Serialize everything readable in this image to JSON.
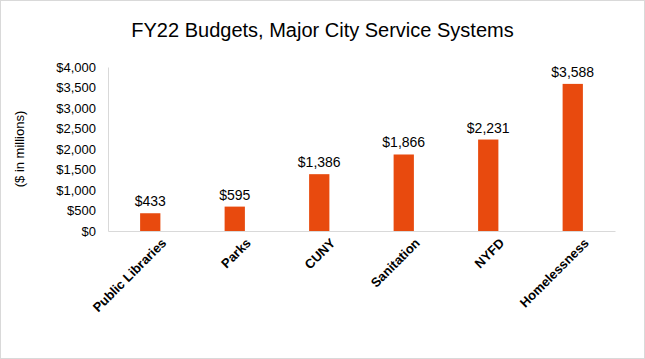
{
  "chart_data": {
    "type": "bar",
    "title": "FY22 Budgets, Major City Service Systems",
    "ylabel": "($ in millions)",
    "categories": [
      "Public Libraries",
      "Parks",
      "CUNY",
      "Sanitation",
      "NYFD",
      "Homelessness"
    ],
    "values": [
      433,
      595,
      1386,
      1866,
      2231,
      3588
    ],
    "value_labels": [
      "$433",
      "$595",
      "$1,386",
      "$1,866",
      "$2,231",
      "$3,588"
    ],
    "color": "#e84a0e",
    "ylim": [
      0,
      4000
    ],
    "yticks": [
      {
        "value": 0,
        "label": "$0"
      },
      {
        "value": 500,
        "label": "$500"
      },
      {
        "value": 1000,
        "label": "$1,000"
      },
      {
        "value": 1500,
        "label": "$1,500"
      },
      {
        "value": 2000,
        "label": "$2,000"
      },
      {
        "value": 2500,
        "label": "$2,500"
      },
      {
        "value": 3000,
        "label": "$3,000"
      },
      {
        "value": 3500,
        "label": "$3,500"
      },
      {
        "value": 4000,
        "label": "$4,000"
      }
    ],
    "grid": false,
    "data_labels": true
  }
}
